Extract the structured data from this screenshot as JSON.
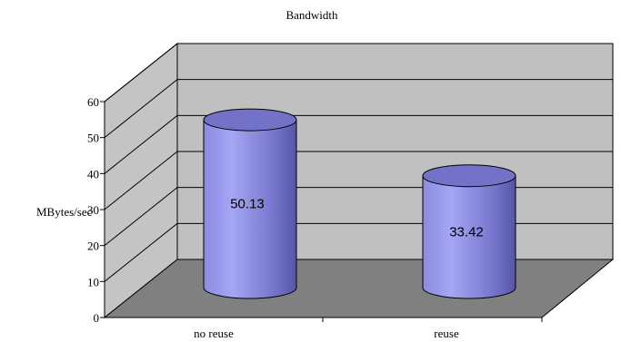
{
  "chart_data": {
    "type": "bar",
    "title": "Bandwidth",
    "ylabel": "MBytes/sec",
    "xlabel": "",
    "categories": [
      "no reuse",
      "reuse"
    ],
    "series": [
      {
        "values": [
          50.13,
          33.42
        ]
      }
    ],
    "data_labels": [
      "50.13",
      "33.42"
    ],
    "ylim": [
      0,
      60
    ],
    "yticks": [
      0,
      10,
      20,
      30,
      40,
      50,
      60
    ],
    "grid": true,
    "legend": "none",
    "style": "3d-cylinder",
    "colors": {
      "bar": "#8c8ce6",
      "bar_top": "#7272c8",
      "back_wall": "#c0c0c0",
      "side_wall": "#c4c4c4",
      "floor": "#808080"
    }
  }
}
